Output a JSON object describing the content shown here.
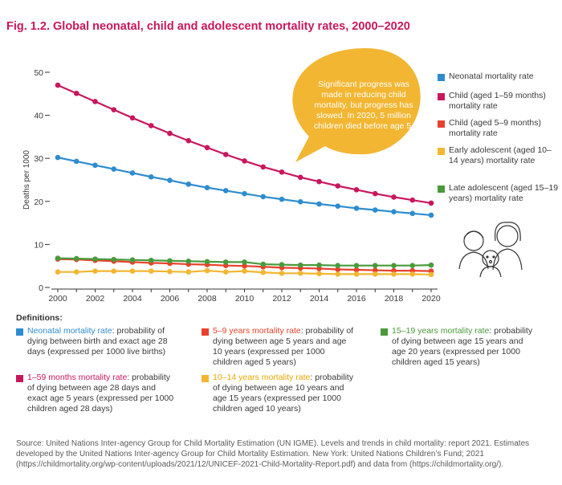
{
  "figure_title": "Fig. 1.2. Global neonatal, child and adolescent mortality rates, 2000–2020",
  "annotation": "Significant progress was made in reducing child mortality, but progress has slowed. In 2020, 5 million children died before age 5.",
  "definitions_heading": "Definitions:",
  "definitions": [
    {
      "term": "Neonatal mortality rate",
      "text": ": probability of dying between birth and exact age 28 days (expressed per 1000 live births)",
      "color": "#2e8ccf"
    },
    {
      "term": "1–59 months mortality rate",
      "text": ": probability of dying between age 28 days and exact age 5 years (expressed per 1000 children aged 28 days)",
      "color": "#c8175d"
    },
    {
      "term": "5–9 years mortality rate",
      "text": ": probability of dying between age 5 years and age 10 years (expressed per 1000 children aged 5 years)",
      "color": "#e8412c"
    },
    {
      "term": "10–14 years mortality rate",
      "text": ": probability of dying between age 10 years and age 15 years (expressed per 1000 children aged 10 years)",
      "color": "#f2b632"
    },
    {
      "term": "15–19 years mortality rate",
      "text": ": probability of dying between age 15 years and age 20 years (expressed per 1000 children aged 15 years)",
      "color": "#4a9a3b"
    }
  ],
  "source": "Source: United Nations Inter-agency Group for Child Mortality Estimation (UN IGME). Levels and trends in child mortality: report 2021. Estimates developed by the United Nations Inter-agency Group for Child Mortality Estimation. New York: United Nations Children’s Fund; 2021 (https://childmortality.org/wp-content/uploads/2021/12/UNICEF-2021-Child-Mortality-Report.pdf) and data from (https://childmortality.org/).",
  "chart_data": {
    "type": "line",
    "title": "",
    "xlabel": "",
    "ylabel": "Deaths per 1000",
    "xlim": [
      2000,
      2020
    ],
    "ylim": [
      0,
      50
    ],
    "x": [
      2000,
      2001,
      2002,
      2003,
      2004,
      2005,
      2006,
      2007,
      2008,
      2009,
      2010,
      2011,
      2012,
      2013,
      2014,
      2015,
      2016,
      2017,
      2018,
      2019,
      2020
    ],
    "x_ticks": [
      "2000",
      "2002",
      "2004",
      "2006",
      "2008",
      "2010",
      "2012",
      "2014",
      "2016",
      "2018",
      "2020"
    ],
    "y_ticks": [
      "0",
      "10",
      "20",
      "30",
      "40",
      "50"
    ],
    "grid": false,
    "legend_position": "right",
    "series": [
      {
        "name": "Neonatal mortality rate",
        "color": "#2e8ccf",
        "values": [
          30.2,
          29.3,
          28.4,
          27.5,
          26.6,
          25.7,
          24.9,
          24.0,
          23.2,
          22.5,
          21.8,
          21.1,
          20.5,
          19.9,
          19.4,
          18.9,
          18.4,
          18.0,
          17.6,
          17.2,
          16.8
        ]
      },
      {
        "name": "Child (aged 1–59 months) mortality rate",
        "color": "#c8175d",
        "values": [
          47.0,
          45.1,
          43.2,
          41.3,
          39.4,
          37.6,
          35.8,
          34.1,
          32.5,
          30.9,
          29.4,
          28.0,
          26.8,
          25.6,
          24.6,
          23.6,
          22.7,
          21.8,
          21.0,
          20.3,
          19.6
        ]
      },
      {
        "name": "Child (aged 5–9 months) mortality rate",
        "color": "#e8412c",
        "values": [
          6.6,
          6.5,
          6.3,
          6.1,
          5.9,
          5.7,
          5.6,
          5.4,
          5.3,
          5.1,
          5.0,
          4.8,
          4.6,
          4.5,
          4.4,
          4.2,
          4.1,
          4.0,
          3.9,
          3.9,
          3.8
        ]
      },
      {
        "name": "Early adolescent (aged 10–14 years) mortality rate",
        "color": "#f2b632",
        "values": [
          3.6,
          3.6,
          3.8,
          3.8,
          3.8,
          3.8,
          3.7,
          3.6,
          3.9,
          3.6,
          3.8,
          3.5,
          3.3,
          3.3,
          3.2,
          3.1,
          3.1,
          3.1,
          3.1,
          3.1,
          3.0
        ]
      },
      {
        "name": "Late adolescent (aged 15–19 years) mortality rate",
        "color": "#4a9a3b",
        "values": [
          6.8,
          6.7,
          6.6,
          6.5,
          6.4,
          6.3,
          6.2,
          6.1,
          6.0,
          5.9,
          5.9,
          5.4,
          5.3,
          5.2,
          5.2,
          5.1,
          5.1,
          5.1,
          5.1,
          5.1,
          5.2
        ]
      }
    ]
  }
}
